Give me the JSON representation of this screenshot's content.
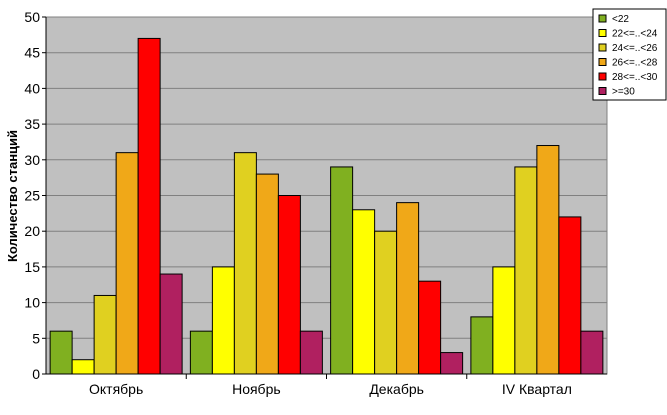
{
  "chart_data": {
    "type": "bar",
    "ylabel": "Количество станций",
    "xlabel": "",
    "ylim": [
      0,
      50
    ],
    "ytick_step": 5,
    "grid": true,
    "legend_position": "top-right",
    "categories": [
      "Октябрь",
      "Ноябрь",
      "Декабрь",
      "IV Квартал"
    ],
    "series": [
      {
        "name": "<22",
        "color": "#80B020",
        "values": [
          6,
          6,
          29,
          8
        ]
      },
      {
        "name": "22<=..<24",
        "color": "#FFFF00",
        "values": [
          2,
          15,
          23,
          15
        ]
      },
      {
        "name": "24<=..<26",
        "color": "#E0D020",
        "values": [
          11,
          31,
          20,
          29
        ]
      },
      {
        "name": "26<=..<28",
        "color": "#F0A818",
        "values": [
          31,
          28,
          24,
          32
        ]
      },
      {
        "name": "28<=..<30",
        "color": "#FF0000",
        "values": [
          47,
          25,
          13,
          22
        ]
      },
      {
        "name": ">=30",
        "color": "#B02060",
        "values": [
          14,
          6,
          3,
          6
        ]
      }
    ],
    "plot_background": "#C0C0C0"
  }
}
